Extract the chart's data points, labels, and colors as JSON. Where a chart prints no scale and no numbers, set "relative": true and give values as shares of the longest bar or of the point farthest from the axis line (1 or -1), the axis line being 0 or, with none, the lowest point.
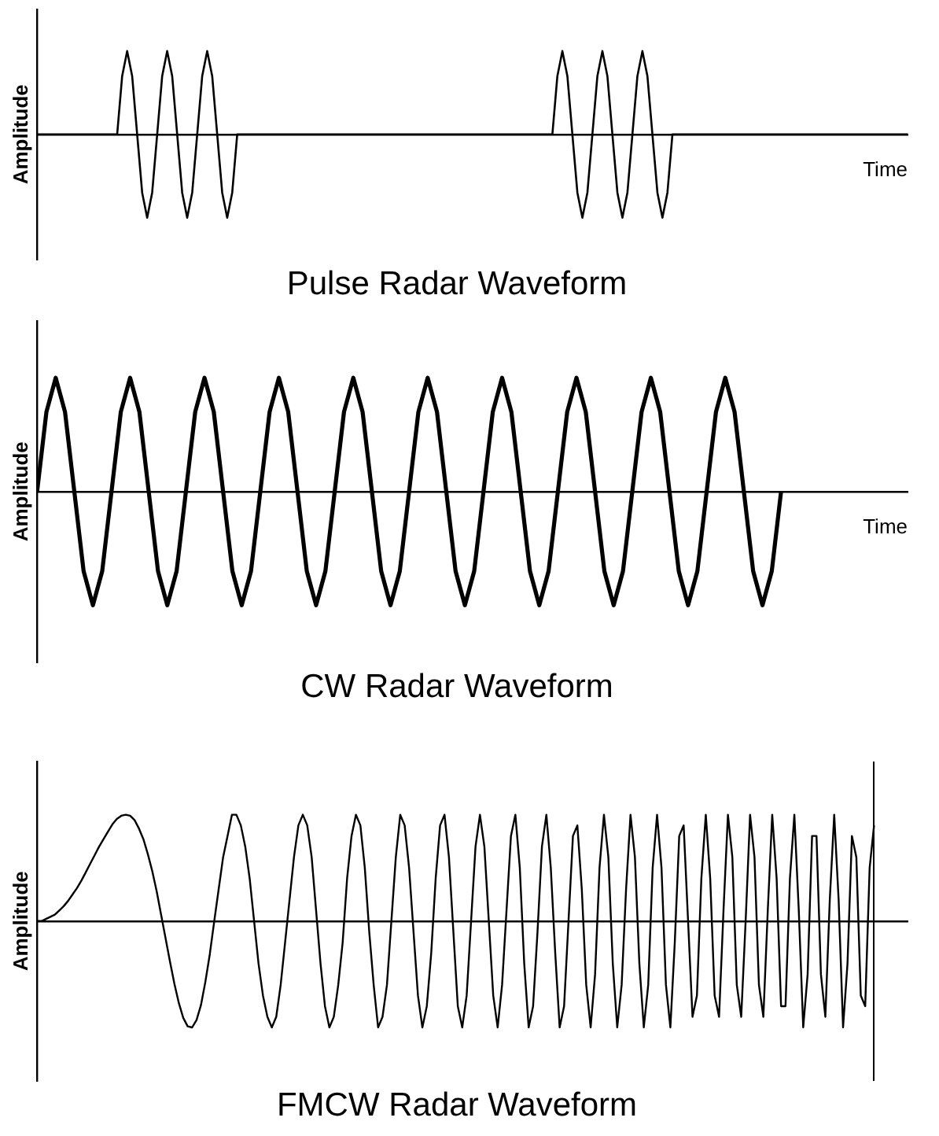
{
  "chart_data": [
    {
      "type": "line",
      "title": "Pulse Radar Waveform",
      "xlabel": "Time",
      "ylabel": "Amplitude",
      "relative": true,
      "grid": false,
      "marker": "none",
      "categories": [
        null,
        null,
        null,
        null,
        null,
        null,
        null,
        null,
        null,
        null,
        null,
        null,
        null,
        null,
        null,
        null,
        null,
        null,
        null,
        null,
        null,
        null,
        null,
        null,
        null,
        null,
        null,
        null,
        null,
        null,
        null,
        null,
        null,
        null,
        null,
        null,
        null,
        null,
        null,
        null,
        null,
        null,
        null,
        null,
        null,
        null,
        null,
        null,
        null,
        null,
        null,
        null,
        null,
        null,
        null,
        null,
        null,
        null,
        null,
        null,
        null,
        null,
        null,
        null,
        null,
        null,
        null,
        null,
        null,
        null,
        null,
        null,
        null,
        null,
        null,
        null,
        null,
        null,
        null,
        null,
        null,
        null,
        null,
        null,
        null,
        null,
        null,
        null,
        null,
        null,
        null,
        null,
        null,
        null,
        null,
        null,
        null,
        null,
        null,
        null,
        null,
        null,
        null,
        null,
        null,
        null,
        null,
        null,
        null,
        null,
        null,
        null,
        null,
        null,
        null,
        null,
        null,
        null,
        null,
        null,
        null,
        null,
        null,
        null,
        null,
        null,
        null,
        null,
        null,
        null,
        null,
        null,
        null,
        null,
        null,
        null,
        null,
        null,
        null,
        null,
        null,
        null,
        null,
        null,
        null,
        null,
        null,
        null,
        null,
        null,
        null,
        null,
        null,
        null,
        null,
        null,
        null,
        null,
        null,
        null,
        null,
        null,
        null,
        null,
        null,
        null,
        null,
        null,
        null,
        null,
        null,
        null,
        null,
        null,
        null
      ],
      "series": [
        {
          "color": "#000000",
          "values": [
            0,
            0,
            0,
            0,
            0,
            0,
            0,
            0,
            0,
            0,
            0,
            0,
            0,
            0,
            0,
            0,
            0,
            0.7,
            1,
            0.7,
            0,
            -0.7,
            -1,
            -0.7,
            0,
            0.7,
            1,
            0.7,
            0,
            -0.7,
            -1,
            -0.7,
            0,
            0.7,
            1,
            0.7,
            0,
            -0.7,
            -1,
            -0.7,
            0,
            0,
            0,
            0,
            0,
            0,
            0,
            0,
            0,
            0,
            0,
            0,
            0,
            0,
            0,
            0,
            0,
            0,
            0,
            0,
            0,
            0,
            0,
            0,
            0,
            0,
            0,
            0,
            0,
            0,
            0,
            0,
            0,
            0,
            0,
            0,
            0,
            0,
            0,
            0,
            0,
            0,
            0,
            0,
            0,
            0,
            0,
            0,
            0,
            0,
            0,
            0,
            0,
            0,
            0,
            0,
            0,
            0,
            0,
            0,
            0,
            0,
            0,
            0,
            0.7,
            1,
            0.7,
            0,
            -0.7,
            -1,
            -0.7,
            0,
            0.7,
            1,
            0.7,
            0,
            -0.7,
            -1,
            -0.7,
            0,
            0.7,
            1,
            0.7,
            0,
            -0.7,
            -1,
            -0.7,
            0,
            0,
            0,
            0,
            0,
            0,
            0,
            0,
            0,
            0,
            0,
            0,
            0,
            0,
            0,
            0,
            0,
            0,
            0,
            0,
            0,
            0,
            0,
            0,
            0,
            0,
            0,
            0,
            0,
            0,
            0,
            0,
            0,
            0,
            0,
            0,
            0,
            0,
            0,
            0,
            0,
            0,
            0,
            0,
            0,
            0,
            0,
            0
          ]
        }
      ]
    },
    {
      "type": "line",
      "title": "CW Radar Waveform",
      "xlabel": "Time",
      "ylabel": "Amplitude",
      "relative": true,
      "grid": false,
      "marker": "none",
      "categories": [
        null,
        null,
        null,
        null,
        null,
        null,
        null,
        null,
        null,
        null,
        null,
        null,
        null,
        null,
        null,
        null,
        null,
        null,
        null,
        null,
        null,
        null,
        null,
        null,
        null,
        null,
        null,
        null,
        null,
        null,
        null,
        null,
        null,
        null,
        null,
        null,
        null,
        null,
        null,
        null,
        null,
        null,
        null,
        null,
        null,
        null,
        null,
        null,
        null,
        null,
        null,
        null,
        null,
        null,
        null,
        null,
        null,
        null,
        null,
        null,
        null,
        null,
        null,
        null,
        null,
        null,
        null,
        null,
        null,
        null,
        null,
        null,
        null,
        null,
        null,
        null,
        null,
        null,
        null,
        null,
        null
      ],
      "series": [
        {
          "color": "#000000",
          "values": [
            0,
            0.7,
            1,
            0.7,
            0,
            -0.7,
            -1,
            -0.7,
            0,
            0.7,
            1,
            0.7,
            0,
            -0.7,
            -1,
            -0.7,
            0,
            0.7,
            1,
            0.7,
            0,
            -0.7,
            -1,
            -0.7,
            0,
            0.7,
            1,
            0.7,
            0,
            -0.7,
            -1,
            -0.7,
            0,
            0.7,
            1,
            0.7,
            0,
            -0.7,
            -1,
            -0.7,
            0,
            0.7,
            1,
            0.7,
            0,
            -0.7,
            -1,
            -0.7,
            0,
            0.7,
            1,
            0.7,
            0,
            -0.7,
            -1,
            -0.7,
            0,
            0.7,
            1,
            0.7,
            0,
            -0.7,
            -1,
            -0.7,
            0,
            0.7,
            1,
            0.7,
            0,
            -0.7,
            -1,
            -0.7,
            0,
            0.7,
            1,
            0.7,
            0,
            -0.7,
            -1,
            -0.7,
            0
          ]
        }
      ]
    },
    {
      "type": "line",
      "title": "FMCW Radar Waveform",
      "ylabel": "Amplitude",
      "relative": true,
      "grid": false,
      "marker": "none",
      "categories": [
        null,
        null,
        null,
        null,
        null,
        null,
        null,
        null,
        null,
        null,
        null,
        null,
        null,
        null,
        null,
        null,
        null,
        null,
        null,
        null,
        null,
        null,
        null,
        null,
        null,
        null,
        null,
        null,
        null,
        null,
        null,
        null,
        null,
        null,
        null,
        null,
        null,
        null,
        null,
        null,
        null,
        null,
        null,
        null,
        null,
        null,
        null,
        null,
        null,
        null,
        null,
        null,
        null,
        null,
        null,
        null,
        null,
        null,
        null,
        null,
        null,
        null,
        null,
        null,
        null,
        null,
        null,
        null,
        null,
        null,
        null,
        null,
        null,
        null,
        null,
        null,
        null,
        null,
        null,
        null,
        null,
        null,
        null,
        null,
        null,
        null,
        null,
        null,
        null,
        null,
        null,
        null,
        null,
        null,
        null,
        null,
        null,
        null,
        null,
        null,
        null,
        null,
        null,
        null,
        null,
        null,
        null,
        null,
        null,
        null,
        null,
        null,
        null,
        null,
        null,
        null,
        null,
        null,
        null,
        null,
        null,
        null,
        null,
        null,
        null,
        null,
        null,
        null,
        null,
        null,
        null,
        null,
        null,
        null,
        null,
        null,
        null,
        null,
        null,
        null,
        null,
        null,
        null,
        null,
        null,
        null,
        null,
        null,
        null,
        null,
        null,
        null,
        null,
        null,
        null,
        null,
        null,
        null,
        null,
        null,
        null,
        null,
        null,
        null,
        null,
        null,
        null,
        null,
        null,
        null,
        null,
        null,
        null,
        null,
        null,
        null,
        null,
        null,
        null,
        null,
        null,
        null,
        null,
        null,
        null,
        null,
        null,
        null,
        null,
        null
      ],
      "series": [
        {
          "color": "#000000",
          "values": [
            0,
            0,
            0.02,
            0.04,
            0.06,
            0.1,
            0.14,
            0.19,
            0.25,
            0.31,
            0.38,
            0.46,
            0.54,
            0.62,
            0.7,
            0.77,
            0.84,
            0.91,
            0.96,
            0.99,
            1,
            0.99,
            0.95,
            0.87,
            0.77,
            0.63,
            0.47,
            0.28,
            0.06,
            -0.16,
            -0.38,
            -0.59,
            -0.77,
            -0.91,
            -0.99,
            -1,
            -0.93,
            -0.79,
            -0.57,
            -0.31,
            0,
            0.3,
            0.6,
            0.8,
            1,
            1,
            0.9,
            0.7,
            0.4,
            0,
            -0.4,
            -0.7,
            -0.9,
            -1,
            -0.9,
            -0.6,
            -0.2,
            0.2,
            0.6,
            0.9,
            1,
            0.9,
            0.6,
            0.1,
            -0.4,
            -0.8,
            -1,
            -0.9,
            -0.6,
            -0.2,
            0.4,
            0.8,
            1,
            0.9,
            0.5,
            -0.1,
            -0.6,
            -1,
            -0.9,
            -0.6,
            0,
            0.6,
            1,
            0.9,
            0.5,
            -0.1,
            -0.7,
            -1,
            -0.8,
            -0.3,
            0.4,
            0.9,
            1,
            0.6,
            -0.1,
            -0.8,
            -1,
            -0.7,
            0,
            0.7,
            1,
            0.7,
            0,
            -0.7,
            -1,
            -0.6,
            0.1,
            0.8,
            1,
            0.5,
            -0.4,
            -1,
            -0.8,
            -0.1,
            0.7,
            1,
            0.5,
            -0.3,
            -1,
            -0.8,
            0,
            0.8,
            0.9,
            0.3,
            -0.6,
            -1,
            -0.5,
            0.5,
            1,
            0.6,
            -0.4,
            -1,
            -0.6,
            0.3,
            1,
            0.6,
            -0.4,
            -1,
            -0.6,
            0.5,
            1,
            0.5,
            -0.6,
            -1,
            -0.2,
            0.8,
            0.9,
            0,
            -0.9,
            -0.7,
            0.4,
            1,
            0.4,
            -0.7,
            -0.9,
            0.1,
            1,
            0.6,
            -0.6,
            -0.9,
            0,
            1,
            0.6,
            -0.6,
            -0.9,
            0.1,
            1,
            0.4,
            -0.8,
            -0.8,
            0.4,
            1,
            0.1,
            -1,
            -0.5,
            0.8,
            0.8,
            -0.5,
            -0.9,
            0.2,
            1,
            0.2,
            -1,
            -0.4,
            0.8,
            0.6,
            -0.7,
            -0.8,
            0.5,
            0.9
          ]
        }
      ]
    }
  ]
}
